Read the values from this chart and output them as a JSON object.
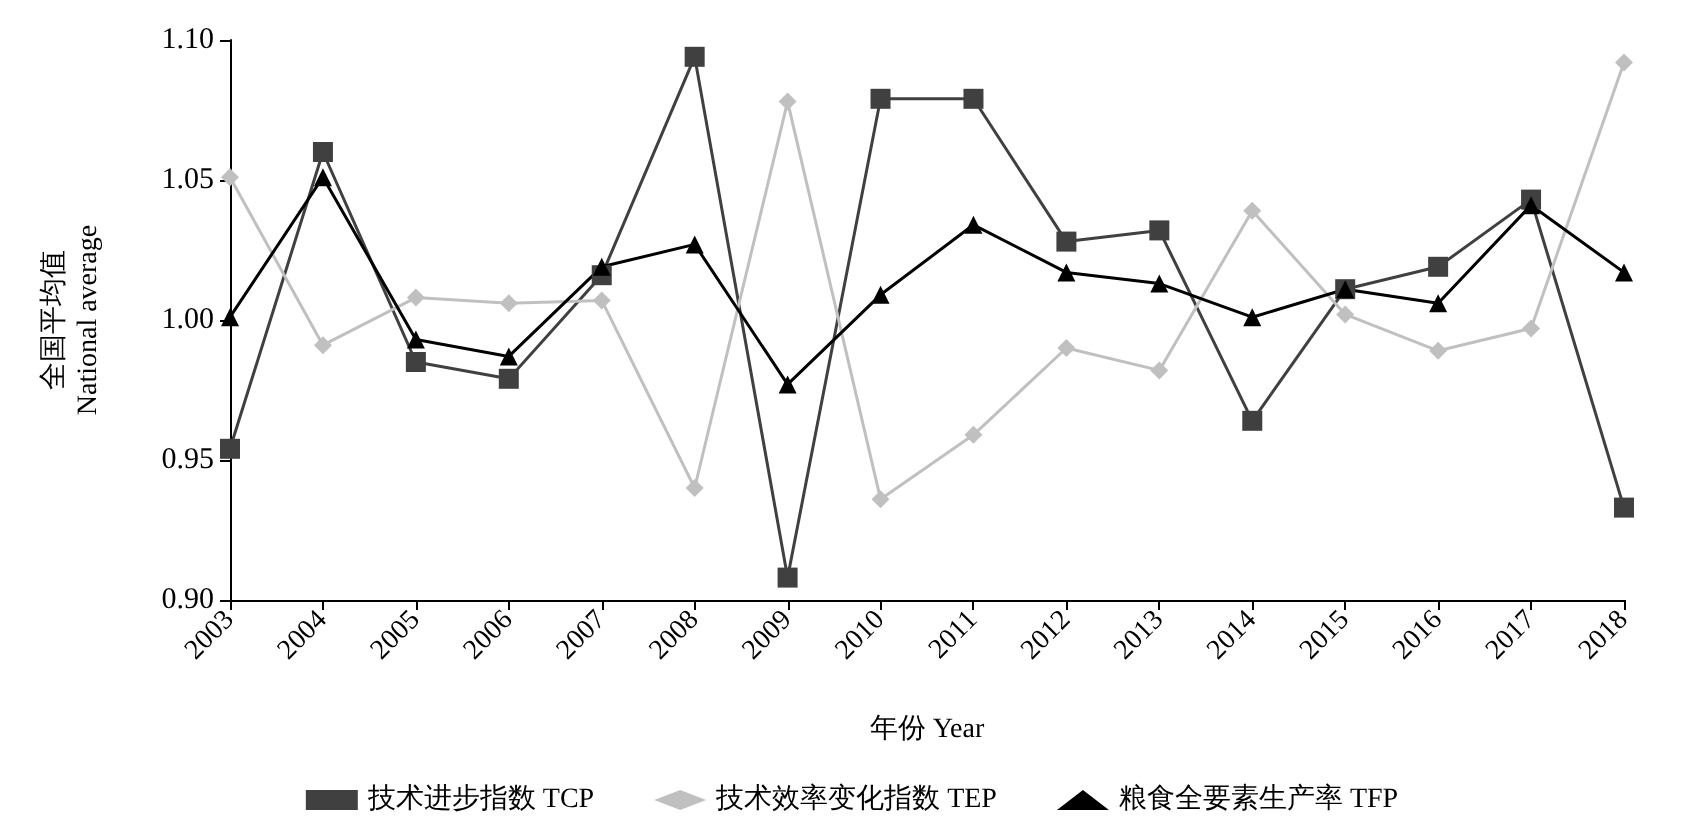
{
  "chart_data": {
    "type": "line",
    "xlabel": "年份 Year",
    "ylabel": "全国平均值\nNational average",
    "categories": [
      "2003",
      "2004",
      "2005",
      "2006",
      "2007",
      "2008",
      "2009",
      "2010",
      "2011",
      "2012",
      "2013",
      "2014",
      "2015",
      "2016",
      "2017",
      "2018"
    ],
    "series": [
      {
        "name": "技术进步指数 TCP",
        "color": "#404040",
        "marker": "square",
        "values": [
          0.954,
          1.06,
          0.985,
          0.979,
          1.016,
          1.094,
          0.908,
          1.079,
          1.079,
          1.028,
          1.032,
          0.964,
          1.011,
          1.019,
          1.043,
          0.933
        ]
      },
      {
        "name": "技术效率变化指数 TEP",
        "color": "#c0c0c0",
        "marker": "diamond",
        "values": [
          1.051,
          0.991,
          1.008,
          1.006,
          1.007,
          0.94,
          1.078,
          0.936,
          0.959,
          0.99,
          0.982,
          1.039,
          1.002,
          0.989,
          0.997,
          1.092
        ]
      },
      {
        "name": "粮食全要素生产率 TFP",
        "color": "#000000",
        "marker": "triangle",
        "values": [
          1.001,
          1.051,
          0.993,
          0.987,
          1.019,
          1.027,
          0.977,
          1.009,
          1.034,
          1.017,
          1.013,
          1.001,
          1.011,
          1.006,
          1.041,
          1.017
        ]
      }
    ],
    "ylim": [
      0.9,
      1.1
    ],
    "yticks": [
      {
        "value": 0.9,
        "label": "0.90"
      },
      {
        "value": 0.95,
        "label": "0.95"
      },
      {
        "value": 1.0,
        "label": "1.00"
      },
      {
        "value": 1.05,
        "label": "1.05"
      },
      {
        "value": 1.1,
        "label": "1.10"
      }
    ],
    "grid": false,
    "legend": "bottom",
    "line_style": "solid"
  }
}
